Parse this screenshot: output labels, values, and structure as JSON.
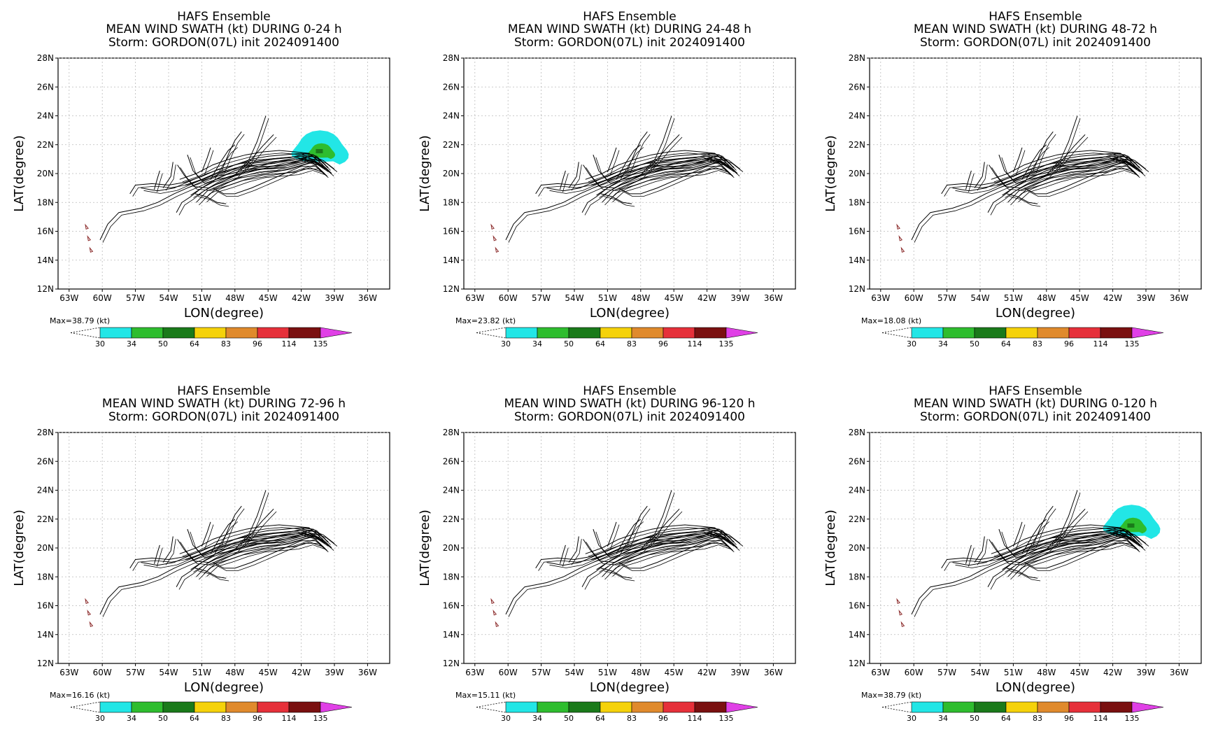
{
  "figure": {
    "panels": [
      {
        "title_line1": "HAFS Ensemble",
        "title_line2": "MEAN WIND SWATH (kt) DURING  0-24 h",
        "title_line3": "Storm: GORDON(07L) init 2024091400",
        "max_label": "Max=38.79 (kt)"
      },
      {
        "title_line1": "HAFS Ensemble",
        "title_line2": "MEAN WIND SWATH (kt) DURING 24-48 h",
        "title_line3": "Storm: GORDON(07L) init 2024091400",
        "max_label": "Max=23.82 (kt)"
      },
      {
        "title_line1": "HAFS Ensemble",
        "title_line2": "MEAN WIND SWATH (kt) DURING 48-72 h",
        "title_line3": "Storm: GORDON(07L) init 2024091400",
        "max_label": "Max=18.08 (kt)"
      },
      {
        "title_line1": "HAFS Ensemble",
        "title_line2": "MEAN WIND SWATH (kt) DURING 72-96 h",
        "title_line3": "Storm: GORDON(07L) init 2024091400",
        "max_label": "Max=16.16 (kt)"
      },
      {
        "title_line1": "HAFS Ensemble",
        "title_line2": "MEAN WIND SWATH (kt) DURING 96-120 h",
        "title_line3": "Storm: GORDON(07L) init 2024091400",
        "max_label": "Max=15.11 (kt)"
      },
      {
        "title_line1": "HAFS Ensemble",
        "title_line2": "MEAN WIND SWATH (kt) DURING 0-120 h",
        "title_line3": "Storm: GORDON(07L) init 2024091400",
        "max_label": "Max=38.79 (kt)"
      }
    ],
    "colorbar": {
      "levels": [
        "30",
        "34",
        "50",
        "64",
        "83",
        "96",
        "114",
        "135"
      ],
      "colors": [
        "#22e6e6",
        "#2ebd2e",
        "#1a7a1a",
        "#f5d20a",
        "#e08a2c",
        "#e6303a",
        "#7a1010",
        "#e040e6"
      ]
    },
    "swath_colors": {
      "light": "#22e6e6",
      "mid": "#2ebd2e",
      "dark": "#1a7a1a"
    },
    "track_color": "#000000",
    "island_color": "#8b2a2a"
  },
  "chart_data": [
    {
      "type": "map-track",
      "title": "HAFS Ensemble / MEAN WIND SWATH (kt) DURING  0-24 h / Storm: GORDON(07L) init 2024091400",
      "xlabel": "LON(degree)",
      "ylabel": "LAT(degree)",
      "x_ticks": [
        "63W",
        "60W",
        "57W",
        "54W",
        "51W",
        "48W",
        "45W",
        "42W",
        "39W",
        "36W"
      ],
      "y_ticks": [
        "12N",
        "14N",
        "16N",
        "18N",
        "20N",
        "22N",
        "24N",
        "26N",
        "28N"
      ],
      "xlim": [
        -64,
        -34
      ],
      "ylim": [
        12,
        28
      ],
      "grid": true,
      "max_kt": 38.79,
      "swath": {
        "center_lon": -40.3,
        "center_lat": 21.6,
        "levels_shown": [
          "30",
          "34"
        ]
      }
    },
    {
      "type": "map-track",
      "title": "HAFS Ensemble / MEAN WIND SWATH (kt) DURING 24-48 h / Storm: GORDON(07L) init 2024091400",
      "xlabel": "LON(degree)",
      "ylabel": "LAT(degree)",
      "x_ticks": [
        "63W",
        "60W",
        "57W",
        "54W",
        "51W",
        "48W",
        "45W",
        "42W",
        "39W",
        "36W"
      ],
      "y_ticks": [
        "12N",
        "14N",
        "16N",
        "18N",
        "20N",
        "22N",
        "24N",
        "26N",
        "28N"
      ],
      "xlim": [
        -64,
        -34
      ],
      "ylim": [
        12,
        28
      ],
      "grid": true,
      "max_kt": 23.82
    },
    {
      "type": "map-track",
      "title": "HAFS Ensemble / MEAN WIND SWATH (kt) DURING 48-72 h / Storm: GORDON(07L) init 2024091400",
      "xlabel": "LON(degree)",
      "ylabel": "LAT(degree)",
      "x_ticks": [
        "63W",
        "60W",
        "57W",
        "54W",
        "51W",
        "48W",
        "45W",
        "42W",
        "39W",
        "36W"
      ],
      "y_ticks": [
        "12N",
        "14N",
        "16N",
        "18N",
        "20N",
        "22N",
        "24N",
        "26N",
        "28N"
      ],
      "xlim": [
        -64,
        -34
      ],
      "ylim": [
        12,
        28
      ],
      "grid": true,
      "max_kt": 18.08
    },
    {
      "type": "map-track",
      "title": "HAFS Ensemble / MEAN WIND SWATH (kt) DURING 72-96 h / Storm: GORDON(07L) init 2024091400",
      "xlabel": "LON(degree)",
      "ylabel": "LAT(degree)",
      "x_ticks": [
        "63W",
        "60W",
        "57W",
        "54W",
        "51W",
        "48W",
        "45W",
        "42W",
        "39W",
        "36W"
      ],
      "y_ticks": [
        "12N",
        "14N",
        "16N",
        "18N",
        "20N",
        "22N",
        "24N",
        "26N",
        "28N"
      ],
      "xlim": [
        -64,
        -34
      ],
      "ylim": [
        12,
        28
      ],
      "grid": true,
      "max_kt": 16.16
    },
    {
      "type": "map-track",
      "title": "HAFS Ensemble / MEAN WIND SWATH (kt) DURING 96-120 h / Storm: GORDON(07L) init 2024091400",
      "xlabel": "LON(degree)",
      "ylabel": "LAT(degree)",
      "x_ticks": [
        "63W",
        "60W",
        "57W",
        "54W",
        "51W",
        "48W",
        "45W",
        "42W",
        "39W",
        "36W"
      ],
      "y_ticks": [
        "12N",
        "14N",
        "16N",
        "18N",
        "20N",
        "22N",
        "24N",
        "26N",
        "28N"
      ],
      "xlim": [
        -64,
        -34
      ],
      "ylim": [
        12,
        28
      ],
      "grid": true,
      "max_kt": 15.11
    },
    {
      "type": "map-track",
      "title": "HAFS Ensemble / MEAN WIND SWATH (kt) DURING 0-120 h / Storm: GORDON(07L) init 2024091400",
      "xlabel": "LON(degree)",
      "ylabel": "LAT(degree)",
      "x_ticks": [
        "63W",
        "60W",
        "57W",
        "54W",
        "51W",
        "48W",
        "45W",
        "42W",
        "39W",
        "36W"
      ],
      "y_ticks": [
        "12N",
        "14N",
        "16N",
        "18N",
        "20N",
        "22N",
        "24N",
        "26N",
        "28N"
      ],
      "xlim": [
        -64,
        -34
      ],
      "ylim": [
        12,
        28
      ],
      "grid": true,
      "max_kt": 38.79,
      "swath": {
        "center_lon": -40.3,
        "center_lat": 21.6,
        "levels_shown": [
          "30",
          "34"
        ]
      }
    }
  ],
  "tracks": {
    "note_free": true,
    "members": [
      [
        [
          -60.2,
          15.4
        ],
        [
          -59.5,
          16.5
        ],
        [
          -58.5,
          17.3
        ],
        [
          -56.5,
          17.6
        ],
        [
          -55.0,
          18.0
        ],
        [
          -53.5,
          18.6
        ],
        [
          -52.0,
          19.1
        ],
        [
          -50.5,
          19.6
        ],
        [
          -49.0,
          20.1
        ],
        [
          -47.5,
          20.4
        ],
        [
          -46.0,
          20.6
        ],
        [
          -44.5,
          20.7
        ],
        [
          -43.0,
          20.9
        ],
        [
          -41.5,
          21.1
        ],
        [
          -40.5,
          20.9
        ],
        [
          -39.5,
          20.2
        ]
      ],
      [
        [
          -57.5,
          18.6
        ],
        [
          -57.0,
          19.2
        ],
        [
          -55.5,
          19.3
        ],
        [
          -54.0,
          19.2
        ],
        [
          -52.5,
          19.4
        ],
        [
          -51.0,
          19.8
        ],
        [
          -49.5,
          20.3
        ],
        [
          -48.0,
          20.6
        ],
        [
          -46.5,
          20.9
        ],
        [
          -45.0,
          21.0
        ],
        [
          -43.5,
          21.1
        ],
        [
          -42.0,
          21.2
        ],
        [
          -41.0,
          21.0
        ],
        [
          -40.0,
          20.5
        ]
      ],
      [
        [
          -56.5,
          19.0
        ],
        [
          -55.0,
          18.8
        ],
        [
          -53.5,
          19.0
        ],
        [
          -52.0,
          19.5
        ],
        [
          -50.5,
          20.0
        ],
        [
          -49.0,
          20.4
        ],
        [
          -47.5,
          20.7
        ],
        [
          -46.0,
          20.8
        ],
        [
          -44.5,
          21.0
        ],
        [
          -43.0,
          21.1
        ],
        [
          -41.5,
          21.4
        ],
        [
          -40.6,
          21.2
        ],
        [
          -39.6,
          20.4
        ]
      ],
      [
        [
          -53.3,
          17.3
        ],
        [
          -52.8,
          18.0
        ],
        [
          -52.0,
          18.4
        ],
        [
          -51.0,
          19.0
        ],
        [
          -50.0,
          19.4
        ],
        [
          -48.5,
          19.8
        ],
        [
          -47.0,
          20.1
        ],
        [
          -45.5,
          20.3
        ],
        [
          -44.0,
          20.4
        ],
        [
          -42.5,
          20.7
        ],
        [
          -41.2,
          21.0
        ],
        [
          -40.2,
          20.6
        ],
        [
          -39.3,
          20.0
        ]
      ],
      [
        [
          -52.0,
          18.5
        ],
        [
          -50.8,
          19.1
        ],
        [
          -49.5,
          19.7
        ],
        [
          -48.0,
          20.2
        ],
        [
          -46.5,
          20.5
        ],
        [
          -45.0,
          20.5
        ],
        [
          -43.5,
          20.6
        ],
        [
          -42.2,
          20.9
        ],
        [
          -41.0,
          21.2
        ],
        [
          -40.0,
          20.9
        ],
        [
          -39.0,
          20.3
        ]
      ],
      [
        [
          -51.5,
          18.0
        ],
        [
          -50.5,
          18.8
        ],
        [
          -49.0,
          19.3
        ],
        [
          -47.5,
          19.7
        ],
        [
          -46.0,
          19.9
        ],
        [
          -44.5,
          20.1
        ],
        [
          -43.0,
          20.3
        ],
        [
          -41.8,
          20.6
        ],
        [
          -40.8,
          20.8
        ],
        [
          -39.8,
          20.3
        ]
      ],
      [
        [
          -52.5,
          19.2
        ],
        [
          -51.0,
          19.6
        ],
        [
          -49.5,
          20.1
        ],
        [
          -48.0,
          20.6
        ],
        [
          -46.5,
          21.0
        ],
        [
          -45.0,
          21.2
        ],
        [
          -43.5,
          21.3
        ],
        [
          -42.0,
          21.4
        ],
        [
          -40.9,
          21.3
        ],
        [
          -39.8,
          20.6
        ]
      ],
      [
        [
          -50.8,
          18.2
        ],
        [
          -49.8,
          18.9
        ],
        [
          -48.5,
          19.2
        ],
        [
          -47.0,
          19.6
        ],
        [
          -45.5,
          19.9
        ],
        [
          -44.0,
          20.0
        ],
        [
          -42.5,
          20.1
        ],
        [
          -41.2,
          20.4
        ],
        [
          -40.1,
          20.1
        ]
      ],
      [
        [
          -53.0,
          19.6
        ],
        [
          -51.5,
          20.0
        ],
        [
          -50.0,
          20.6
        ],
        [
          -48.5,
          21.0
        ],
        [
          -47.0,
          21.3
        ],
        [
          -45.5,
          21.5
        ],
        [
          -44.0,
          21.6
        ],
        [
          -42.5,
          21.5
        ],
        [
          -41.3,
          21.4
        ],
        [
          -40.3,
          20.8
        ]
      ],
      [
        [
          -52.3,
          21.3
        ],
        [
          -51.8,
          20.2
        ],
        [
          -51.0,
          19.5
        ],
        [
          -49.8,
          19.8
        ],
        [
          -48.3,
          20.0
        ],
        [
          -46.8,
          20.3
        ],
        [
          -45.3,
          20.6
        ],
        [
          -43.8,
          20.9
        ],
        [
          -42.3,
          21.1
        ],
        [
          -41.0,
          20.8
        ],
        [
          -39.9,
          20.0
        ]
      ],
      [
        [
          -53.2,
          20.6
        ],
        [
          -52.6,
          19.9
        ],
        [
          -51.7,
          19.1
        ],
        [
          -50.4,
          19.0
        ],
        [
          -49.0,
          19.5
        ],
        [
          -47.5,
          20.0
        ],
        [
          -46.0,
          20.3
        ],
        [
          -44.5,
          20.4
        ],
        [
          -43.0,
          20.7
        ],
        [
          -41.6,
          21.0
        ],
        [
          -40.4,
          20.7
        ]
      ],
      [
        [
          -49.5,
          19.3
        ],
        [
          -48.0,
          19.9
        ],
        [
          -46.7,
          21.0
        ],
        [
          -46.0,
          22.2
        ],
        [
          -45.2,
          24.0
        ]
      ],
      [
        [
          -49.2,
          20.2
        ],
        [
          -48.5,
          21.5
        ],
        [
          -48.0,
          22.3
        ],
        [
          -47.4,
          22.9
        ]
      ],
      [
        [
          -50.2,
          19.6
        ],
        [
          -49.3,
          20.8
        ],
        [
          -48.6,
          21.6
        ],
        [
          -48.0,
          22.0
        ]
      ],
      [
        [
          -51.0,
          20.1
        ],
        [
          -50.5,
          21.1
        ],
        [
          -50.2,
          21.8
        ]
      ],
      [
        [
          -54.5,
          19.0
        ],
        [
          -53.8,
          19.8
        ],
        [
          -53.6,
          20.8
        ]
      ],
      [
        [
          -55.3,
          18.9
        ],
        [
          -55.0,
          19.7
        ],
        [
          -54.8,
          20.2
        ]
      ],
      [
        [
          -47.5,
          20.2
        ],
        [
          -46.5,
          21.0
        ],
        [
          -45.5,
          21.9
        ],
        [
          -44.5,
          22.7
        ]
      ],
      [
        [
          -50.0,
          19.0
        ],
        [
          -49.0,
          18.6
        ],
        [
          -48.0,
          18.6
        ],
        [
          -46.5,
          19.0
        ],
        [
          -45.0,
          19.5
        ],
        [
          -43.5,
          20.0
        ],
        [
          -42.0,
          20.5
        ],
        [
          -40.7,
          20.5
        ],
        [
          -39.8,
          19.9
        ]
      ],
      [
        [
          -51.6,
          18.6
        ],
        [
          -50.6,
          18.4
        ],
        [
          -49.6,
          18.0
        ],
        [
          -48.8,
          17.9
        ]
      ]
    ],
    "islands": [
      [
        -61.4,
        16.3
      ],
      [
        -61.2,
        15.5
      ],
      [
        -61.0,
        14.7
      ]
    ]
  }
}
